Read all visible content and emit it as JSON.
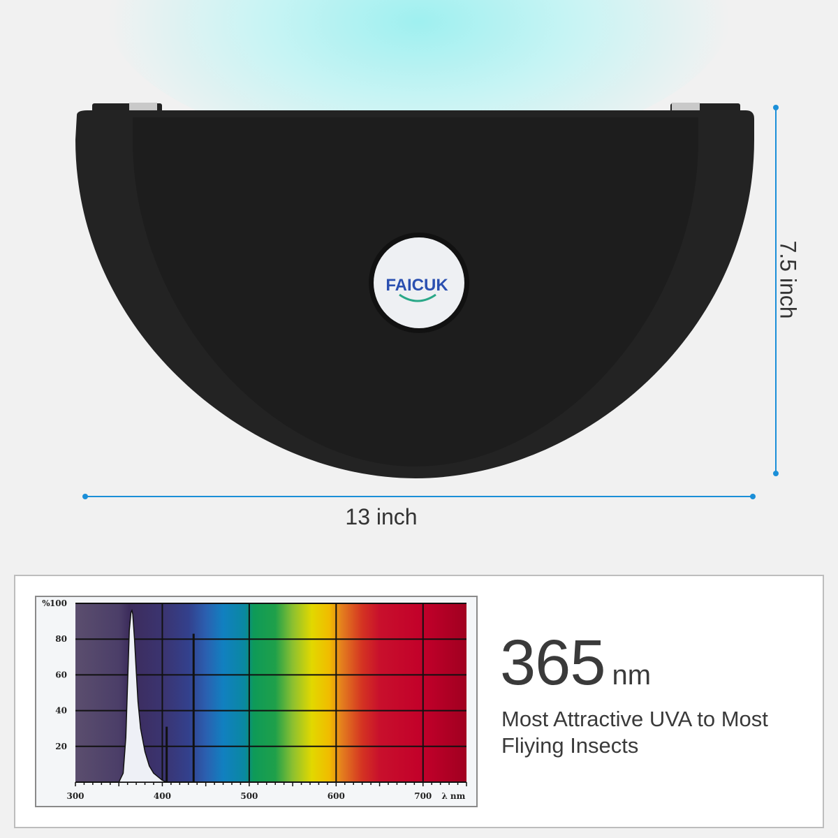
{
  "brand": {
    "logo_text": "FAICUK",
    "colors": {
      "logo_blue": "#2a4fb0",
      "logo_green": "#2aa888"
    }
  },
  "dimensions": {
    "width_label": "13 inch",
    "height_label": "7.5 inch",
    "line_color": "#1b8fd8"
  },
  "feature": {
    "wavelength": "365",
    "unit": "nm",
    "description": "Most Attractive UVA to Most Fliying Insects"
  },
  "chart_data": {
    "type": "line",
    "title": "",
    "xlabel": "λ nm",
    "ylabel": "%",
    "xlim": [
      300,
      750
    ],
    "ylim": [
      0,
      100
    ],
    "x_ticks": [
      "300",
      "400",
      "500",
      "600",
      "700"
    ],
    "y_ticks": [
      "100",
      "80",
      "60",
      "40",
      "20"
    ],
    "y_unit_label": "%",
    "grid": true,
    "background": "visible spectrum gradient",
    "series": [
      {
        "x": [
          350,
          355,
          358,
          360,
          362,
          364,
          365,
          366,
          368,
          370,
          372,
          375,
          380,
          385,
          390,
          395,
          400,
          405
        ],
        "y": [
          0,
          5,
          25,
          55,
          85,
          95,
          96,
          94,
          80,
          62,
          45,
          30,
          17,
          9,
          5,
          3,
          1,
          0
        ]
      }
    ],
    "spikes": [
      {
        "x": 405,
        "y": 31
      },
      {
        "x": 436,
        "y": 83
      }
    ]
  }
}
